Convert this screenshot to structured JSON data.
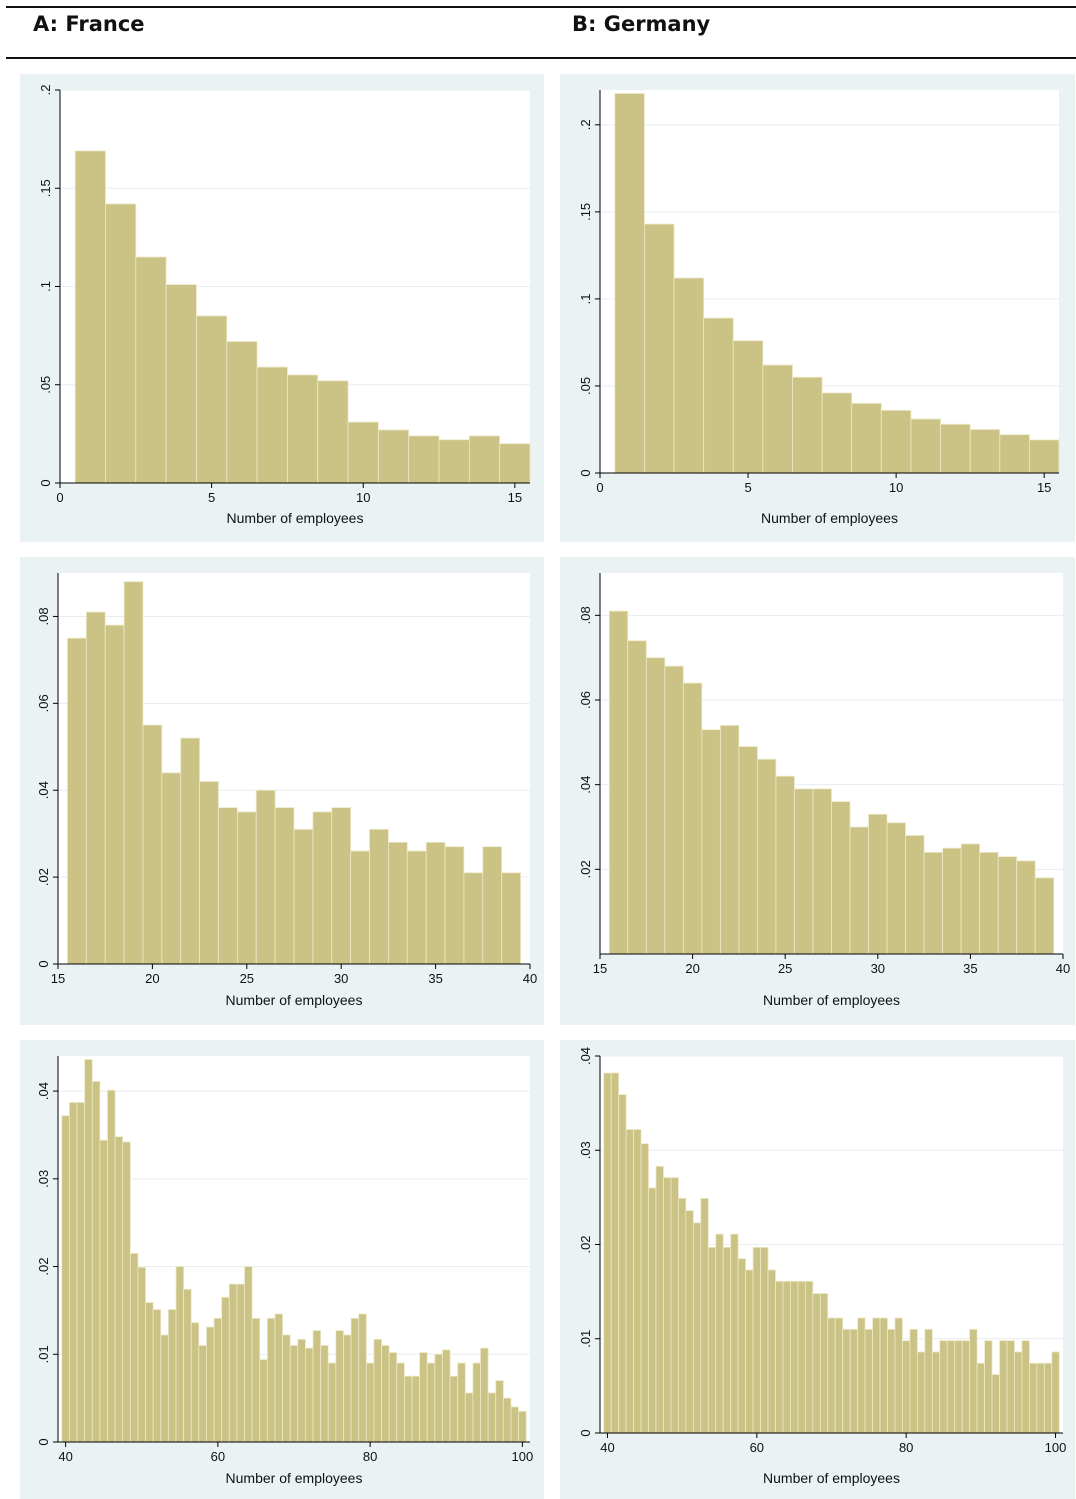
{
  "panels": [
    {
      "label": "A: France"
    },
    {
      "label": "B: Germany"
    }
  ],
  "colors": {
    "bar_fill": "#cbc386",
    "bar_edge": "#ede8c6",
    "frame_bg": "#eaf2f3",
    "grid": "#e6eef0"
  },
  "chart_data": [
    {
      "type": "bar",
      "panel": "A: France",
      "xlabel": "Number of employees",
      "xlim": [
        0,
        15.5
      ],
      "ylim": [
        0,
        0.2
      ],
      "xticks": [
        0,
        5,
        10,
        15
      ],
      "xtick_labels": [
        "0",
        "5",
        "10",
        "15"
      ],
      "yticks": [
        0,
        0.05,
        0.1,
        0.15,
        0.2
      ],
      "ytick_labels": [
        "0",
        ".05",
        ".1",
        ".15",
        ".2"
      ],
      "bin_start": 0.5,
      "bin_width": 1,
      "values": [
        0.169,
        0.142,
        0.115,
        0.101,
        0.085,
        0.072,
        0.059,
        0.055,
        0.052,
        0.031,
        0.027,
        0.024,
        0.022,
        0.024,
        0.02
      ]
    },
    {
      "type": "bar",
      "panel": "B: Germany",
      "xlabel": "Number of employees",
      "xlim": [
        0,
        15.5
      ],
      "ylim": [
        0,
        0.22
      ],
      "xticks": [
        0,
        5,
        10,
        15
      ],
      "xtick_labels": [
        "0",
        "5",
        "10",
        "15"
      ],
      "yticks": [
        0,
        0.05,
        0.1,
        0.15,
        0.2
      ],
      "ytick_labels": [
        "0",
        ".05",
        ".1",
        ".15",
        ".2"
      ],
      "bin_start": 0.5,
      "bin_width": 1,
      "values": [
        0.218,
        0.143,
        0.112,
        0.089,
        0.076,
        0.062,
        0.055,
        0.046,
        0.04,
        0.036,
        0.031,
        0.028,
        0.025,
        0.022,
        0.019
      ]
    },
    {
      "type": "bar",
      "panel": "A: France",
      "xlabel": "Number of employees",
      "xlim": [
        15,
        40
      ],
      "ylim": [
        0,
        0.09
      ],
      "xticks": [
        15,
        20,
        25,
        30,
        35,
        40
      ],
      "xtick_labels": [
        "15",
        "20",
        "25",
        "30",
        "35",
        "40"
      ],
      "yticks": [
        0,
        0.02,
        0.04,
        0.06,
        0.08
      ],
      "ytick_labels": [
        "0",
        ".02",
        ".04",
        ".06",
        ".08"
      ],
      "bin_start": 15.5,
      "bin_width": 1,
      "values": [
        0.075,
        0.081,
        0.078,
        0.088,
        0.055,
        0.044,
        0.052,
        0.042,
        0.036,
        0.035,
        0.04,
        0.036,
        0.031,
        0.035,
        0.036,
        0.026,
        0.031,
        0.028,
        0.026,
        0.028,
        0.027,
        0.021,
        0.027,
        0.021
      ]
    },
    {
      "type": "bar",
      "panel": "B: Germany",
      "xlabel": "Number of employees",
      "xlim": [
        15,
        40
      ],
      "ylim": [
        0,
        0.09
      ],
      "xticks": [
        15,
        20,
        25,
        30,
        35,
        40
      ],
      "xtick_labels": [
        "15",
        "20",
        "25",
        "30",
        "35",
        "40"
      ],
      "yticks": [
        0.02,
        0.04,
        0.06,
        0.08
      ],
      "ytick_labels": [
        ".02",
        ".04",
        ".06",
        ".08"
      ],
      "bin_start": 15.5,
      "bin_width": 1,
      "values": [
        0.081,
        0.074,
        0.07,
        0.068,
        0.064,
        0.053,
        0.054,
        0.049,
        0.046,
        0.042,
        0.039,
        0.039,
        0.036,
        0.03,
        0.033,
        0.031,
        0.028,
        0.024,
        0.025,
        0.026,
        0.024,
        0.023,
        0.022,
        0.018
      ]
    },
    {
      "type": "bar",
      "panel": "A: France",
      "xlabel": "Number of employees",
      "xlim": [
        39,
        101
      ],
      "ylim": [
        0,
        0.044
      ],
      "xticks": [
        40,
        60,
        80,
        100
      ],
      "xtick_labels": [
        "40",
        "60",
        "80",
        "100"
      ],
      "yticks": [
        0,
        0.01,
        0.02,
        0.03,
        0.04
      ],
      "ytick_labels": [
        "0",
        ".01",
        ".02",
        ".03",
        ".04"
      ],
      "bin_start": 39.5,
      "bin_width": 1,
      "values": [
        0.0372,
        0.0387,
        0.0387,
        0.0436,
        0.0411,
        0.0344,
        0.0401,
        0.0348,
        0.0342,
        0.0215,
        0.0199,
        0.0159,
        0.0151,
        0.0122,
        0.0151,
        0.02,
        0.0174,
        0.0136,
        0.011,
        0.0131,
        0.0141,
        0.0165,
        0.018,
        0.018,
        0.02,
        0.0141,
        0.0094,
        0.0141,
        0.0146,
        0.0122,
        0.011,
        0.0117,
        0.0107,
        0.0127,
        0.011,
        0.009,
        0.0127,
        0.0122,
        0.0141,
        0.0146,
        0.009,
        0.0117,
        0.011,
        0.0102,
        0.009,
        0.0075,
        0.0075,
        0.0102,
        0.009,
        0.01,
        0.0105,
        0.0075,
        0.009,
        0.0056,
        0.009,
        0.0107,
        0.0056,
        0.007,
        0.005,
        0.004,
        0.0035
      ]
    },
    {
      "type": "bar",
      "panel": "B: Germany",
      "xlabel": "Number of employees",
      "xlim": [
        39,
        101
      ],
      "ylim": [
        0,
        0.04
      ],
      "xticks": [
        40,
        60,
        80,
        100
      ],
      "xtick_labels": [
        "40",
        "60",
        "80",
        "100"
      ],
      "yticks": [
        0,
        0.01,
        0.02,
        0.03,
        0.04
      ],
      "ytick_labels": [
        "0",
        ".01",
        ".02",
        ".03",
        ".04"
      ],
      "bin_start": 39.5,
      "bin_width": 1,
      "values": [
        0.0382,
        0.0382,
        0.0359,
        0.0322,
        0.0322,
        0.0307,
        0.026,
        0.0283,
        0.0271,
        0.0271,
        0.0249,
        0.0236,
        0.0223,
        0.0249,
        0.0197,
        0.0211,
        0.0197,
        0.0211,
        0.0185,
        0.0173,
        0.0197,
        0.0197,
        0.0173,
        0.0161,
        0.0161,
        0.0161,
        0.0161,
        0.0161,
        0.0148,
        0.0148,
        0.0122,
        0.0122,
        0.011,
        0.011,
        0.0122,
        0.011,
        0.0122,
        0.0122,
        0.011,
        0.0122,
        0.0098,
        0.011,
        0.0086,
        0.011,
        0.0086,
        0.0098,
        0.0098,
        0.0098,
        0.0098,
        0.011,
        0.0074,
        0.0098,
        0.0062,
        0.0098,
        0.0098,
        0.0086,
        0.0098,
        0.0074,
        0.0074,
        0.0074,
        0.0086
      ]
    }
  ]
}
